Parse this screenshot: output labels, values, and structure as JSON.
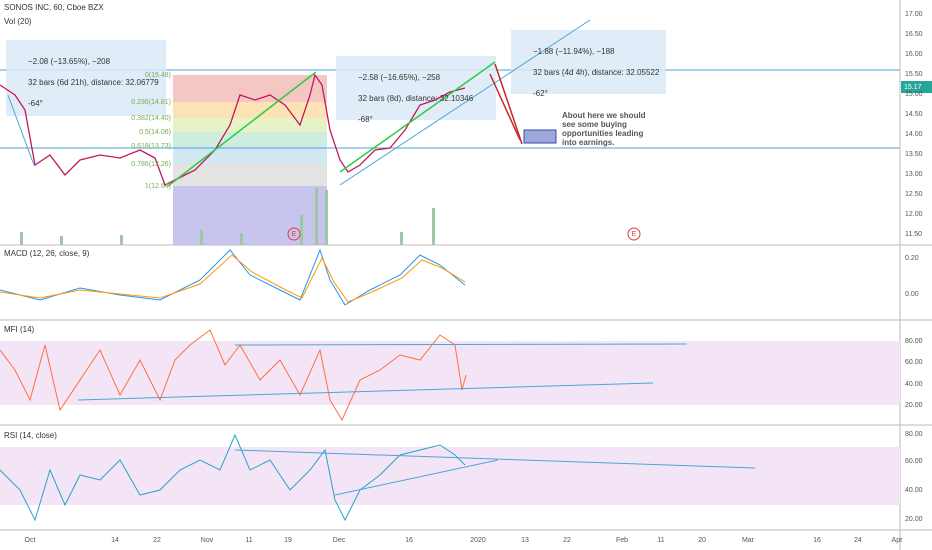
{
  "header": {
    "symbol": "SONOS INC, 60, Cboe BZX",
    "volume": "Vol (20)"
  },
  "price_axis": {
    "labels": [
      "17.00",
      "16.50",
      "16.00",
      "15.50",
      "15.00",
      "14.50",
      "14.00",
      "13.50",
      "13.00",
      "12.50",
      "12.00",
      "11.50"
    ],
    "current": "15.17"
  },
  "measures": [
    {
      "change": "−2.08 (−13.65%), −208",
      "bars": "32 bars (6d 21h), distance: 32.06779",
      "angle": "-64°"
    },
    {
      "change": "−2.58 (−16.65%), −258",
      "bars": "32 bars (8d), distance: 32.10346",
      "angle": "-68°"
    },
    {
      "change": "−1.88 (−11.94%), −188",
      "bars": "32 bars (4d 4h), distance: 32.05522",
      "angle": "-62°"
    }
  ],
  "fib_levels": [
    "0(15.48)",
    "0.236(14.81)",
    "0.382(14.40)",
    "0.5(14.06)",
    "0.618(13.73)",
    "0.786(13.26)",
    "1(12.64)"
  ],
  "note": [
    "About here we should",
    "see some buying",
    "opportunities leading",
    "into earnings."
  ],
  "earnings": [
    "E",
    "E"
  ],
  "panes": [
    {
      "title": "MACD (12, 26, close, 9)",
      "labels": [
        "0.20",
        "0.00"
      ]
    },
    {
      "title": "MFI (14)",
      "labels": [
        "80.00",
        "60.00",
        "40.00",
        "20.00"
      ]
    },
    {
      "title": "RSI (14, close)",
      "labels": [
        "80.00",
        "60.00",
        "40.00",
        "20.00"
      ]
    }
  ],
  "time_axis": [
    "Oct",
    "14",
    "22",
    "Nov",
    "11",
    "19",
    "Dec",
    "16",
    "2020",
    "13",
    "22",
    "Feb",
    "11",
    "20",
    "Mar",
    "16",
    "24",
    "Apr"
  ]
}
